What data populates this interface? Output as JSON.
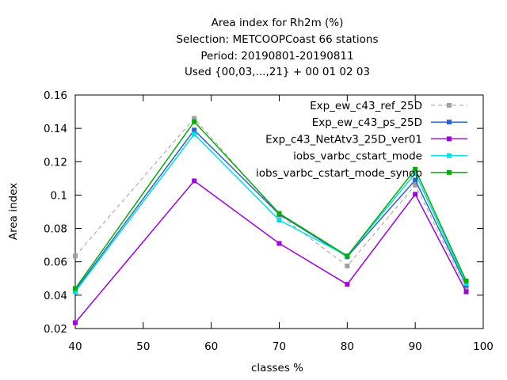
{
  "chart_data": {
    "type": "line",
    "title_lines": [
      "Area index  for Rh2m (%)",
      "Selection: METCOOPCoast     66 stations",
      "Period: 20190801-20190811",
      "Used {00,03,...,21} + 00 01 02 03"
    ],
    "xlabel": "classes %",
    "ylabel": "Area index",
    "xlim": [
      40,
      100
    ],
    "ylim": [
      0.02,
      0.16
    ],
    "xticks": [
      40,
      50,
      60,
      70,
      80,
      90,
      100
    ],
    "xtick_labels": [
      "40",
      "50",
      "60",
      "70",
      "80",
      "90",
      "100"
    ],
    "yticks": [
      0.02,
      0.04,
      0.06,
      0.08,
      0.1,
      0.12,
      0.14,
      0.16
    ],
    "ytick_labels": [
      "0.02",
      "0.04",
      "0.06",
      "0.08",
      "0.1",
      "0.12",
      "0.14",
      "0.16"
    ],
    "x": [
      40,
      57.5,
      70,
      80,
      90,
      97.5
    ],
    "grid": false,
    "legend_position": "top-right",
    "series": [
      {
        "name": "Exp_ew_c43_ref_25D",
        "color": "#a0a0a0",
        "dashed": true,
        "values": [
          0.0635,
          0.146,
          0.088,
          0.0575,
          0.106,
          0.044
        ]
      },
      {
        "name": "Exp_ew_c43_ps_25D",
        "color": "#3060d0",
        "dashed": false,
        "values": [
          0.043,
          0.139,
          0.0885,
          0.063,
          0.109,
          0.046
        ]
      },
      {
        "name": "Exp_c43_NetAtv3_25D_ver01",
        "color": "#a000e0",
        "dashed": false,
        "values": [
          0.0235,
          0.1085,
          0.071,
          0.0465,
          0.1005,
          0.042
        ]
      },
      {
        "name": "iobs_varbc_cstart_mode",
        "color": "#00e0e0",
        "dashed": false,
        "values": [
          0.042,
          0.1365,
          0.085,
          0.0635,
          0.113,
          0.047
        ]
      },
      {
        "name": "iobs_varbc_cstart_mode_synop",
        "color": "#00b000",
        "dashed": false,
        "values": [
          0.044,
          0.144,
          0.089,
          0.0635,
          0.1155,
          0.0485
        ]
      }
    ]
  }
}
